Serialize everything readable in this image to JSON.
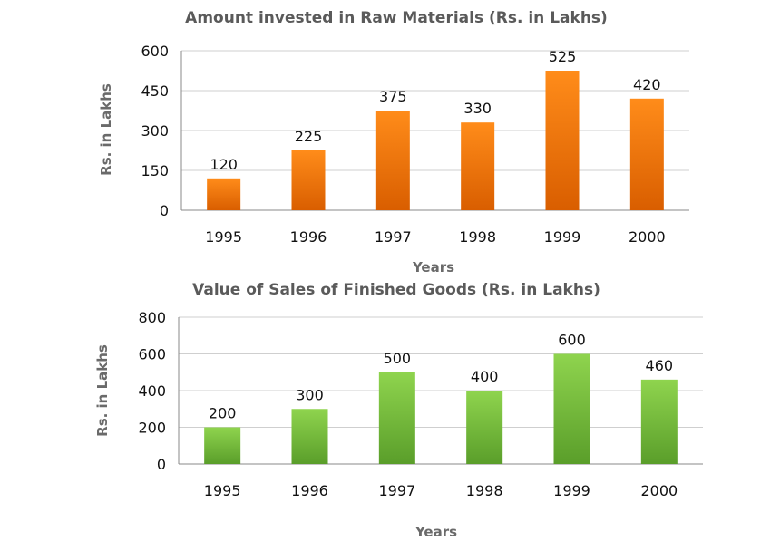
{
  "chart_data": [
    {
      "type": "bar",
      "title": "Amount invested in Raw Materials (Rs. in Lakhs)",
      "xlabel": "Years",
      "ylabel": "Rs. in Lakhs",
      "categories": [
        "1995",
        "1996",
        "1997",
        "1998",
        "1999",
        "2000"
      ],
      "values": [
        120,
        225,
        375,
        330,
        525,
        420
      ],
      "ylim": [
        0,
        600
      ],
      "yticks": [
        0,
        150,
        300,
        450,
        600
      ],
      "grid": true,
      "legend": "none",
      "colors": {
        "top": "#ff8c1a",
        "bottom": "#d95e00"
      }
    },
    {
      "type": "bar",
      "title": "Value of Sales of Finished Goods (Rs. in Lakhs)",
      "xlabel": "Years",
      "ylabel": "Rs. in Lakhs",
      "categories": [
        "1995",
        "1996",
        "1997",
        "1998",
        "1999",
        "2000"
      ],
      "values": [
        200,
        300,
        500,
        400,
        600,
        460
      ],
      "ylim": [
        0,
        800
      ],
      "yticks": [
        0,
        200,
        400,
        600,
        800
      ],
      "grid": true,
      "legend": "none",
      "colors": {
        "top": "#8fd44e",
        "bottom": "#5a9e2a"
      }
    }
  ]
}
